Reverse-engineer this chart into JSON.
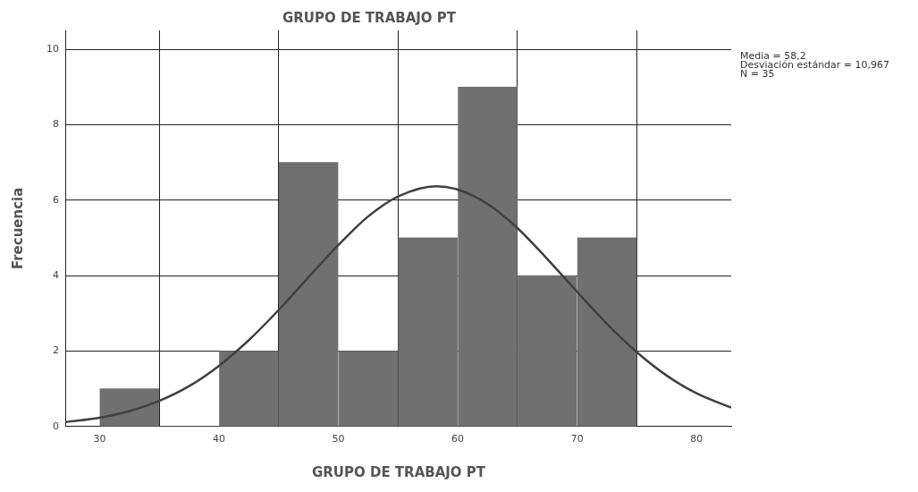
{
  "chart_data": {
    "type": "histogram",
    "title": "GRUPO DE TRABAJO PT",
    "xlabel": "GRUPO DE TRABAJO PT",
    "ylabel": "Frecuencia",
    "bins": [
      30,
      35,
      40,
      45,
      50,
      55,
      60,
      65,
      70,
      75
    ],
    "values": [
      1,
      0,
      2,
      7,
      2,
      5,
      9,
      4,
      5
    ],
    "color": "#707070",
    "series": [
      {
        "type": "line",
        "color": "#404040",
        "x": [
          27.2,
          30,
          32.5,
          35,
          37.5,
          40,
          42.5,
          45,
          47.5,
          50,
          52.5,
          55,
          58.2,
          60,
          62.5,
          65,
          67.5,
          70,
          72.5,
          75,
          77.5,
          80,
          82.9
        ],
        "values": [
          0.12,
          0.23,
          0.41,
          0.68,
          1.07,
          1.61,
          2.29,
          3.09,
          3.96,
          4.81,
          5.57,
          6.1,
          6.37,
          6.28,
          5.9,
          5.26,
          4.44,
          3.57,
          2.72,
          1.97,
          1.35,
          0.88,
          0.5
        ]
      }
    ],
    "xlim": [
      27.2,
      82.9
    ],
    "xticks": [
      30,
      40,
      50,
      60,
      70,
      80
    ],
    "ylim": [
      0,
      10.5
    ],
    "yticks": [
      0,
      2,
      4,
      6,
      8,
      10
    ],
    "grid": true,
    "legend": false,
    "marker": "none",
    "line_style": "solid",
    "annotations": [
      "Media = 58,2",
      "Desviación estándar = 10,967",
      "N = 35"
    ]
  }
}
